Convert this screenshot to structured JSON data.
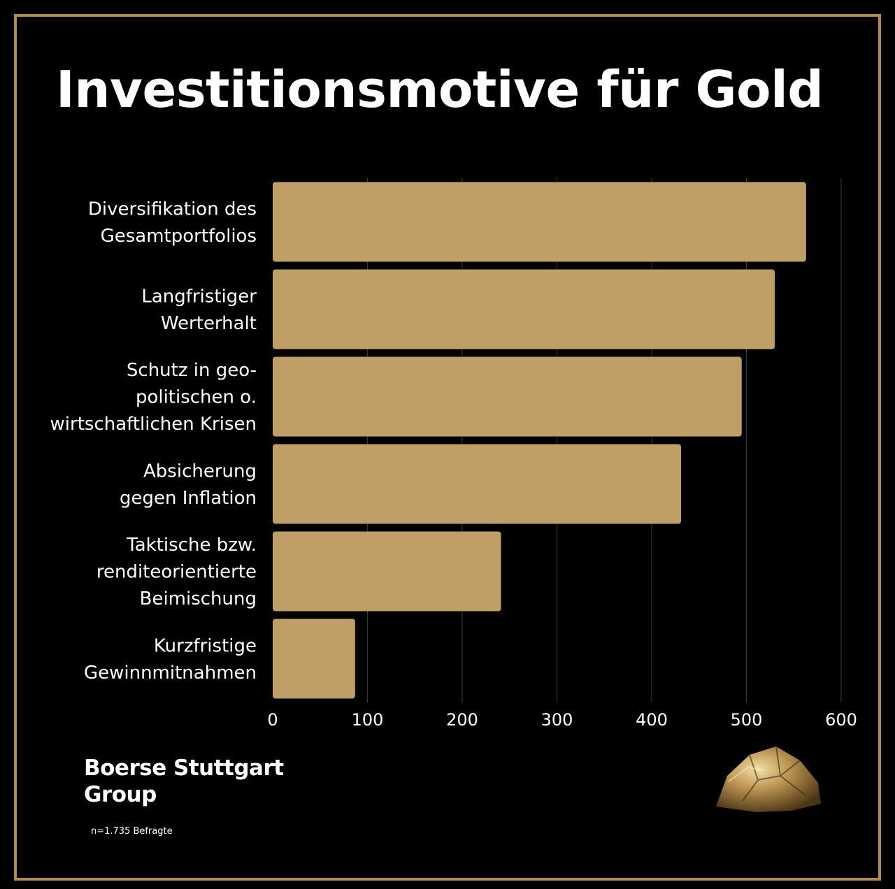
{
  "title": "Investitionsmotive für Gold",
  "brand": {
    "line1": "Boerse Stuttgart",
    "line2": "Group"
  },
  "sample_note": "n=1.735 Befragte",
  "colors": {
    "bar": "#bf9f66",
    "frame": "#b08a4f",
    "background": "#000000",
    "grid": "#3a3a3a",
    "text": "#ffffff"
  },
  "icons": {
    "nugget": "gold-nugget-icon"
  },
  "chart_data": {
    "type": "bar",
    "orientation": "horizontal",
    "categories": [
      [
        "Diversifikation des",
        "Gesamtportfolios"
      ],
      [
        "Langfristiger",
        "Werterhalt"
      ],
      [
        "Schutz in geo-",
        "politischen o.",
        "wirtschaftlichen Krisen"
      ],
      [
        "Absicherung",
        "gegen Inflation"
      ],
      [
        "Taktische bzw.",
        "renditeorientierte",
        "Beimischung"
      ],
      [
        "Kurzfristige",
        "Gewinnmitnahmen"
      ]
    ],
    "values": [
      563,
      530,
      495,
      431,
      241,
      87
    ],
    "xlim": [
      0,
      600
    ],
    "xticks": [
      "0",
      "100",
      "200",
      "300",
      "400",
      "500",
      "600"
    ],
    "grid": true,
    "title": "",
    "xlabel": "",
    "ylabel": ""
  }
}
